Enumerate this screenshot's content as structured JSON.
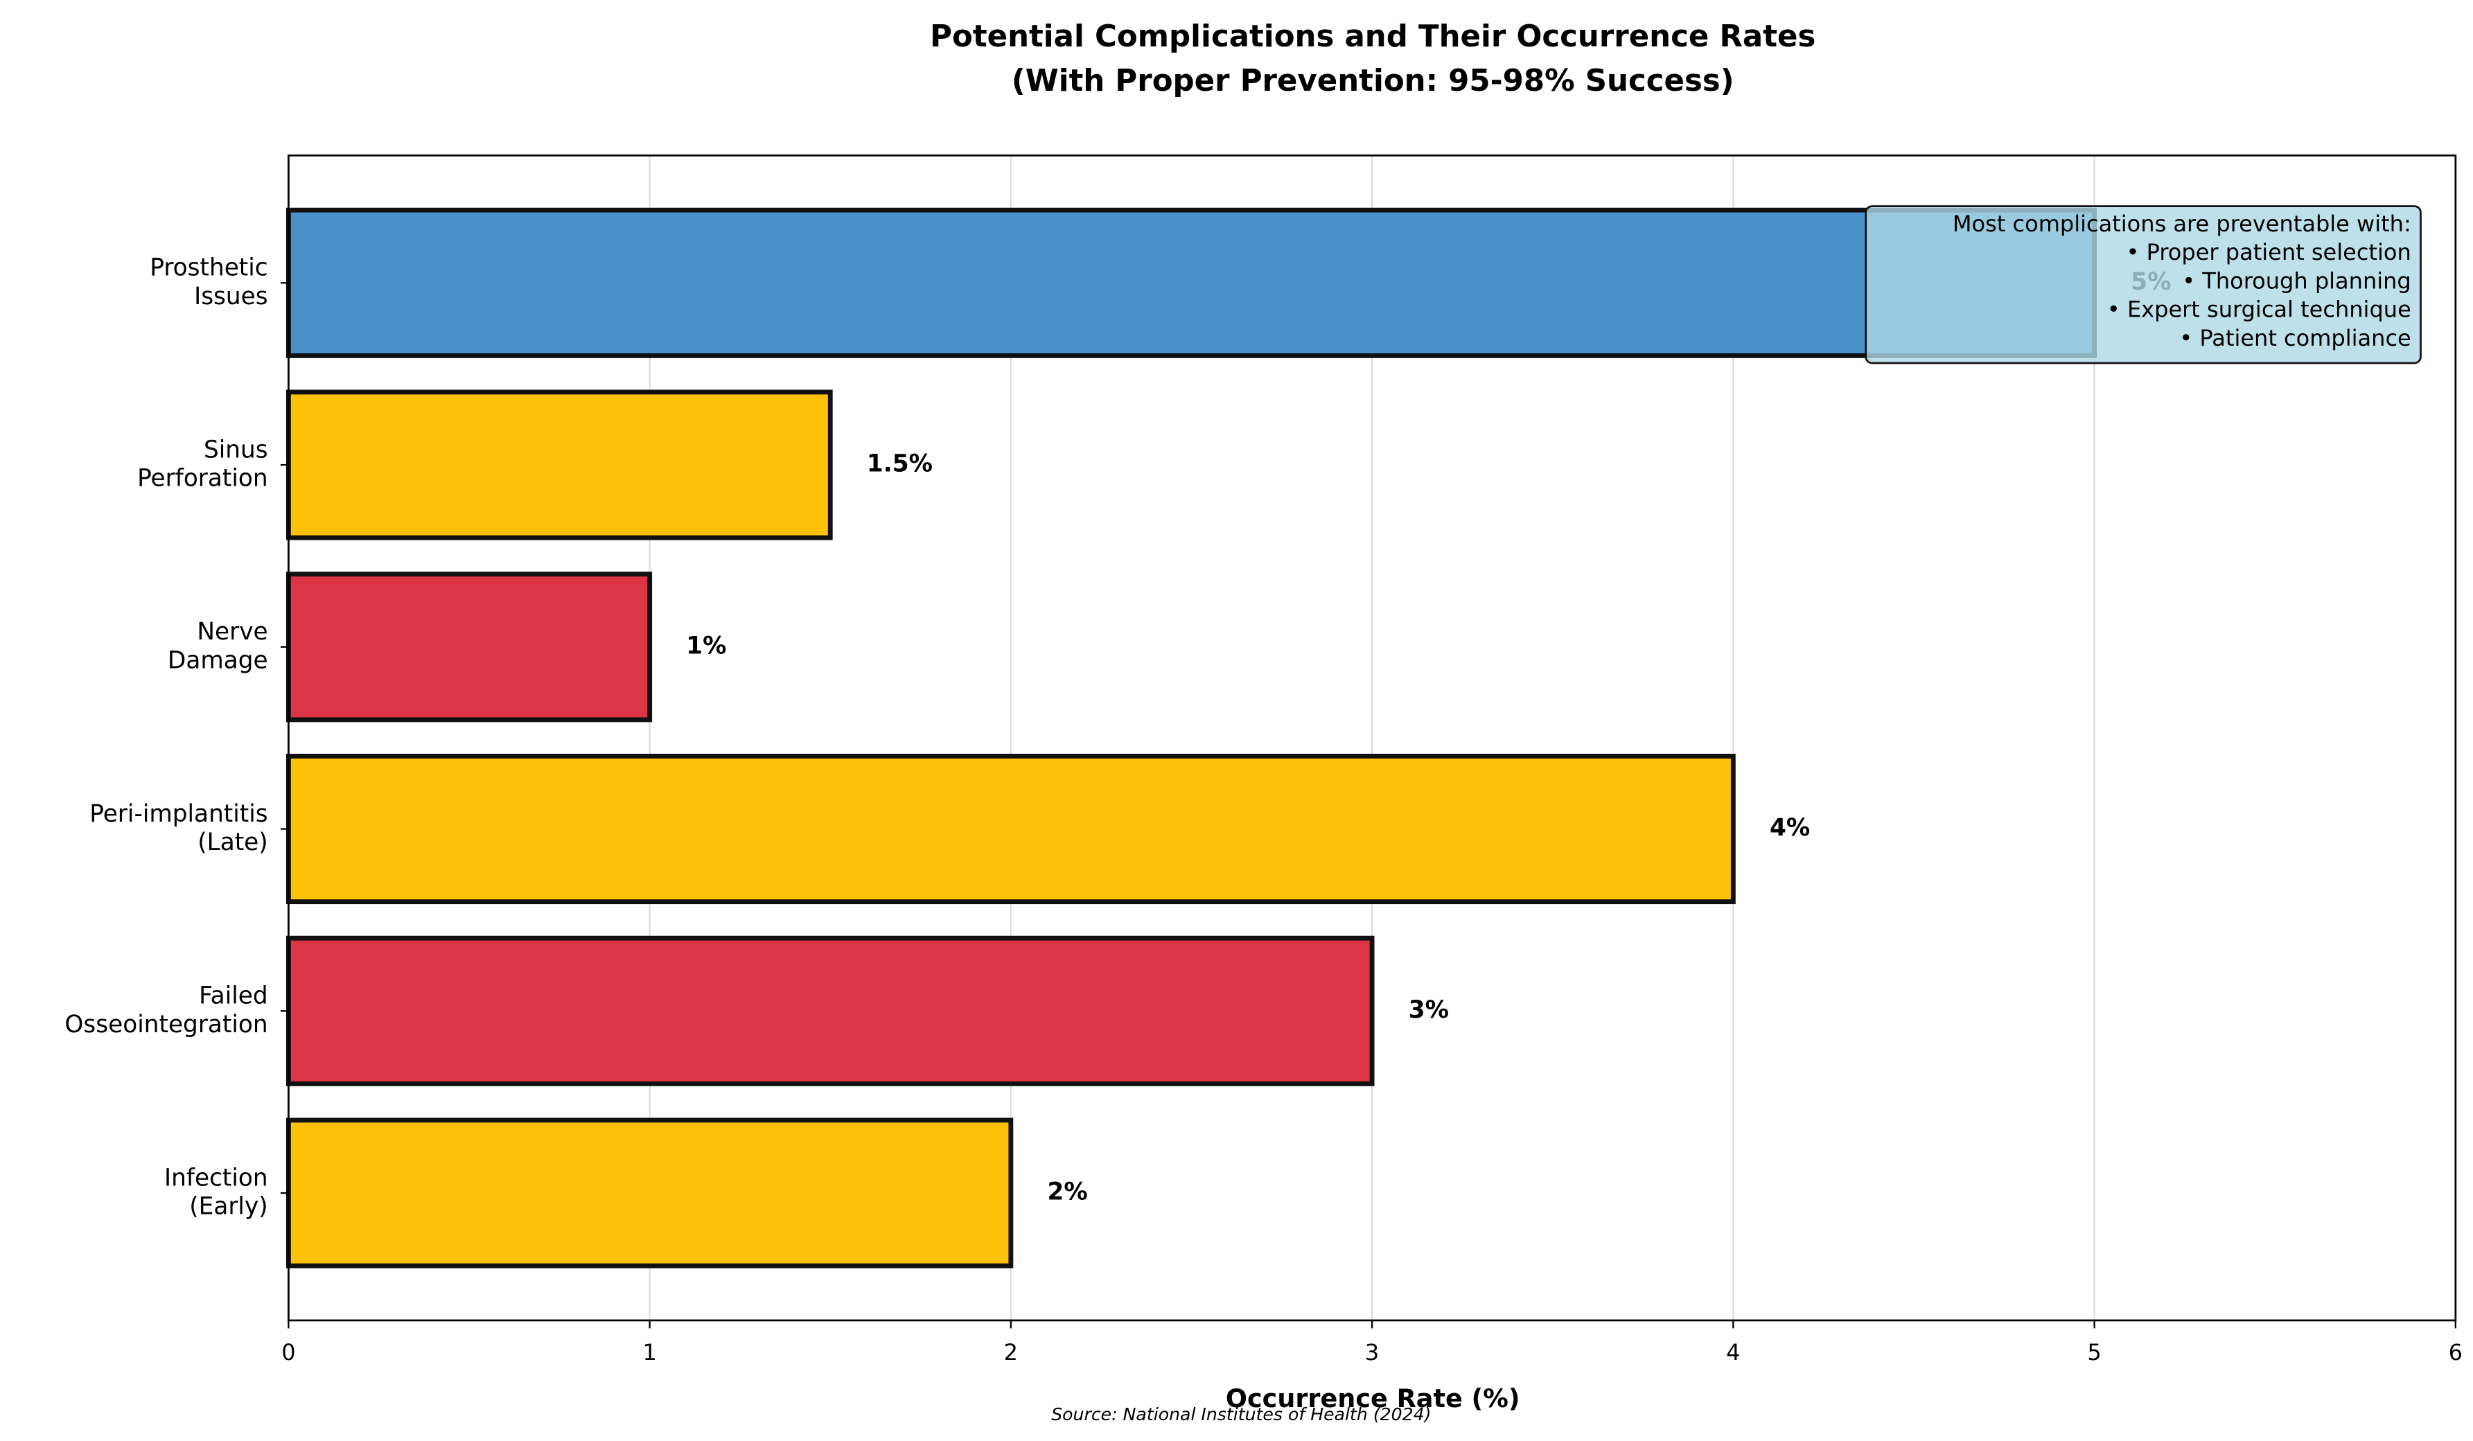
{
  "chart_data": {
    "type": "bar",
    "orientation": "horizontal",
    "title": "Potential Complications and Their Occurrence Rates\n(With Proper Prevention: 95-98% Success)",
    "categories": [
      "Prosthetic\nIssues",
      "Sinus\nPerforation",
      "Nerve\nDamage",
      "Peri-implantitis\n(Late)",
      "Failed\nOsseointegration",
      "Infection\n(Early)"
    ],
    "values": [
      5,
      1.5,
      1,
      4,
      3,
      2
    ],
    "value_labels": [
      "5%",
      "1.5%",
      "1%",
      "4%",
      "3%",
      "2%"
    ],
    "colors": [
      "#4a90c9",
      "#fdc107",
      "#dc3545",
      "#fdc107",
      "#dc3545",
      "#fdc107"
    ],
    "xlabel": "Occurrence Rate (%)",
    "xlim": [
      0,
      6
    ],
    "xticks": [
      0,
      1,
      2,
      3,
      4,
      5,
      6
    ],
    "grid": true,
    "annotation": "Most complications are preventable with:\n• Proper patient selection\n• Thorough planning\n• Expert surgical technique\n• Patient compliance",
    "source": "Source: National Institutes of Health (2024)"
  }
}
